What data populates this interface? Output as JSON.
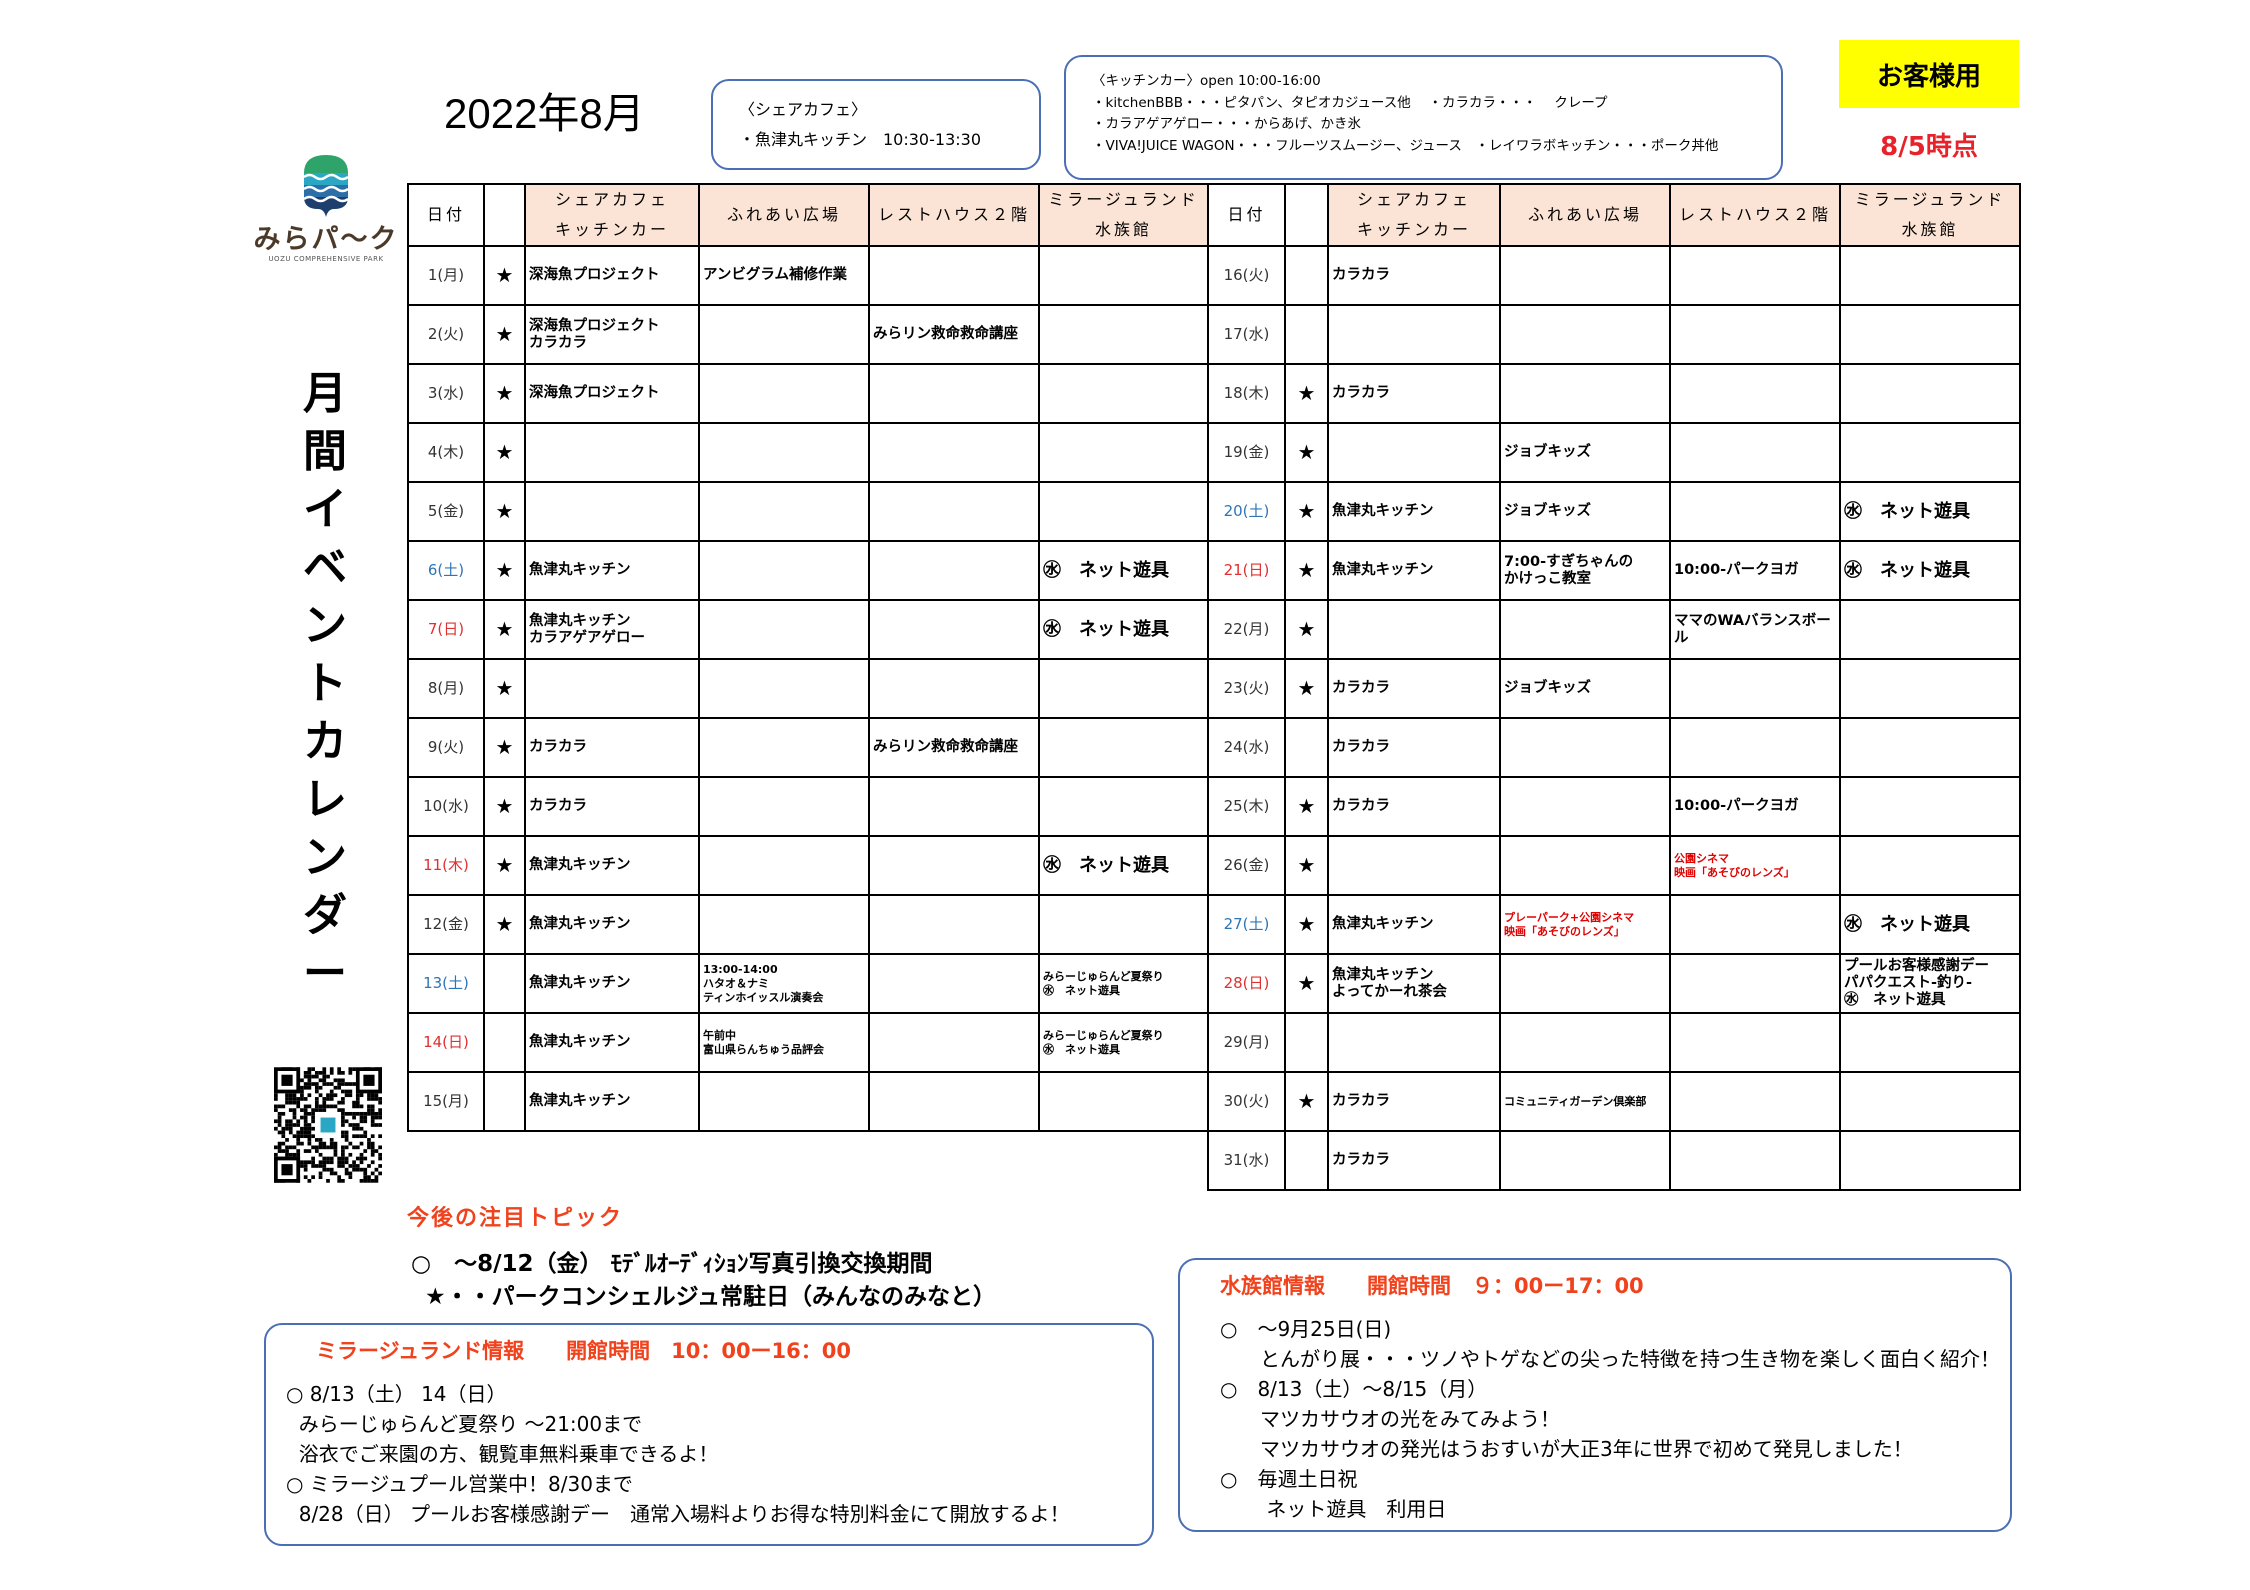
{
  "header": {
    "title": "2022年8月",
    "customer_label": "お客様用",
    "as_of": "8/5時点",
    "vertical_title": "月間イベントカレンダー",
    "logo_text": "みらパ～ク",
    "logo_sub": "UOZU COMPREHENSIVE PARK"
  },
  "share_cafe_box": {
    "heading": "〈シェアカフェ〉",
    "line": "・魚津丸キッチン　10:30-13:30"
  },
  "kitchen_car_box": {
    "lines": [
      "〈キッチンカー〉open 10:00-16:00",
      "・kitchenBBB・・・ピタパン、タピオカジュース他　 ・カラカラ・・・　 クレープ",
      "・カラアゲアゲロー・・・からあげ、かき氷",
      "・VIVA!JUICE WAGON・・・フルーツスムージー、ジュース　・レイワラボキッチン・・・ポーク丼他"
    ]
  },
  "colors": {
    "saturday": "#2e75b6",
    "sunday_holiday": "#e03030",
    "header_bg": "#fbe4d5",
    "accent_red": "#f0421c",
    "customer_bg": "#ffff00"
  },
  "table": {
    "headers": [
      "日付",
      "",
      "シェアカフェ\nキッチンカー",
      "ふれあい広場",
      "レストハウス２階",
      "ミラージュランド\n水族館"
    ],
    "left_rows": [
      {
        "date": "1(月)",
        "day": "weekday",
        "star": "★",
        "cells": [
          "深海魚プロジェクト",
          "アンビグラム補修作業",
          "",
          ""
        ]
      },
      {
        "date": "2(火)",
        "day": "weekday",
        "star": "★",
        "cells": [
          "深海魚プロジェクト\nカラカラ",
          "",
          "みらリン救命救命講座",
          ""
        ]
      },
      {
        "date": "3(水)",
        "day": "weekday",
        "star": "★",
        "cells": [
          "深海魚プロジェクト",
          "",
          "",
          ""
        ]
      },
      {
        "date": "4(木)",
        "day": "weekday",
        "star": "★",
        "cells": [
          "",
          "",
          "",
          ""
        ]
      },
      {
        "date": "5(金)",
        "day": "weekday",
        "star": "★",
        "cells": [
          "",
          "",
          "",
          ""
        ]
      },
      {
        "date": "6(土)",
        "day": "saturday",
        "star": "★",
        "cells": [
          "魚津丸キッチン",
          "",
          "",
          "㊌　ネット遊具"
        ]
      },
      {
        "date": "7(日)",
        "day": "sunday",
        "star": "★",
        "cells": [
          "魚津丸キッチン\nカラアゲアゲロー",
          "",
          "",
          "㊌　ネット遊具"
        ]
      },
      {
        "date": "8(月)",
        "day": "weekday",
        "star": "★",
        "cells": [
          "",
          "",
          "",
          ""
        ]
      },
      {
        "date": "9(火)",
        "day": "weekday",
        "star": "★",
        "cells": [
          "カラカラ",
          "",
          "みらリン救命救命講座",
          ""
        ]
      },
      {
        "date": "10(水)",
        "day": "weekday",
        "star": "★",
        "cells": [
          "カラカラ",
          "",
          "",
          ""
        ]
      },
      {
        "date": "11(木)",
        "day": "sunday",
        "star": "★",
        "cells": [
          "魚津丸キッチン",
          "",
          "",
          "㊌　ネット遊具"
        ]
      },
      {
        "date": "12(金)",
        "day": "weekday",
        "star": "★",
        "cells": [
          "魚津丸キッチン",
          "",
          "",
          ""
        ]
      },
      {
        "date": "13(土)",
        "day": "saturday",
        "star": "",
        "cells": [
          "魚津丸キッチン",
          "13:00-14:00\nハタオ＆ナミ\nティンホイッスル演奏会",
          "",
          "みらーじゅらんど夏祭り\n㊌　ネット遊具"
        ]
      },
      {
        "date": "14(日)",
        "day": "sunday",
        "star": "",
        "cells": [
          "魚津丸キッチン",
          "午前中\n富山県らんちゅう品評会",
          "",
          "みらーじゅらんど夏祭り\n㊌　ネット遊具"
        ]
      },
      {
        "date": "15(月)",
        "day": "weekday",
        "star": "",
        "cells": [
          "魚津丸キッチン",
          "",
          "",
          ""
        ]
      }
    ],
    "right_rows": [
      {
        "date": "16(火)",
        "day": "weekday",
        "star": "",
        "cells": [
          "カラカラ",
          "",
          "",
          ""
        ]
      },
      {
        "date": "17(水)",
        "day": "weekday",
        "star": "",
        "cells": [
          "",
          "",
          "",
          ""
        ]
      },
      {
        "date": "18(木)",
        "day": "weekday",
        "star": "★",
        "cells": [
          "カラカラ",
          "",
          "",
          ""
        ]
      },
      {
        "date": "19(金)",
        "day": "weekday",
        "star": "★",
        "cells": [
          "",
          "ジョブキッズ",
          "",
          ""
        ]
      },
      {
        "date": "20(土)",
        "day": "saturday",
        "star": "★",
        "cells": [
          "魚津丸キッチン",
          "ジョブキッズ",
          "",
          "㊌　ネット遊具"
        ]
      },
      {
        "date": "21(日)",
        "day": "sunday",
        "star": "★",
        "cells": [
          "魚津丸キッチン",
          "7:00-すぎちゃんの\nかけっこ教室",
          "10:00-パークヨガ",
          "㊌　ネット遊具"
        ]
      },
      {
        "date": "22(月)",
        "day": "weekday",
        "star": "★",
        "cells": [
          "",
          "",
          "ママのWAバランスボール",
          ""
        ]
      },
      {
        "date": "23(火)",
        "day": "weekday",
        "star": "★",
        "cells": [
          "カラカラ",
          "ジョブキッズ",
          "",
          ""
        ]
      },
      {
        "date": "24(水)",
        "day": "weekday",
        "star": "",
        "cells": [
          "カラカラ",
          "",
          "",
          ""
        ]
      },
      {
        "date": "25(木)",
        "day": "weekday",
        "star": "★",
        "cells": [
          "カラカラ",
          "",
          "10:00-パークヨガ",
          ""
        ]
      },
      {
        "date": "26(金)",
        "day": "weekday",
        "star": "★",
        "cells": [
          "",
          "",
          {
            "text": "公園シネマ\n映画「あそびのレンズ」",
            "color": "#e00000"
          },
          ""
        ]
      },
      {
        "date": "27(土)",
        "day": "saturday",
        "star": "★",
        "cells": [
          "魚津丸キッチン",
          {
            "text": "プレーパーク+公園シネマ\n映画「あそびのレンズ」",
            "color": "#e00000"
          },
          "",
          "㊌　ネット遊具"
        ]
      },
      {
        "date": "28(日)",
        "day": "sunday",
        "star": "★",
        "cells": [
          "魚津丸キッチン\nよってかーれ茶会",
          "",
          "",
          "プールお客様感謝デー\nパパクエスト-釣り-\n㊌　ネット遊具"
        ]
      },
      {
        "date": "29(月)",
        "day": "weekday",
        "star": "",
        "cells": [
          "",
          "",
          "",
          ""
        ]
      },
      {
        "date": "30(火)",
        "day": "weekday",
        "star": "★",
        "cells": [
          "カラカラ",
          "コミュニティガーデン倶楽部",
          "",
          ""
        ]
      },
      {
        "date": "31(水)",
        "day": "weekday",
        "star": "",
        "cells": [
          "カラカラ",
          "",
          "",
          ""
        ]
      }
    ]
  },
  "topics": {
    "heading": "今後の注目トピック",
    "line1": "○　～8/12（金） ﾓﾃﾞﾙｵｰﾃﾞｨｼｮﾝ写真引換交換期間",
    "line2": "★・・パークコンシェルジュ常駐日（みんなのみなと）"
  },
  "mirage_info": {
    "heading": "ミラージュランド情報　　開館時間　10：00ー16：00",
    "lines": [
      "○ 8/13（土） 14（日）",
      "  みらーじゅらんど夏祭り ～21:00まで",
      "  浴衣でご来園の方、観覧車無料乗車できるよ！",
      "○ ミラージュプール営業中！8/30まで",
      "  8/28（日） プールお客様感謝デー　通常入場料よりお得な特別料金にて開放するよ！"
    ]
  },
  "aquarium_info": {
    "heading": "水族館情報　　開館時間　９：00ー17：00",
    "lines": [
      "○　～9月25日(日)",
      "　　とんがり展・・・ツノやトゲなどの尖った特徴を持つ生き物を楽しく面白く紹介！",
      "○　8/13（土）～8/15（月）",
      "　　マツカサウオの光をみてみよう！",
      "　　マツカサウオの発光はうおすいが大正3年に世界で初めて発見しました！",
      "○　毎週土日祝",
      "　　 ネット遊具　利用日"
    ]
  }
}
